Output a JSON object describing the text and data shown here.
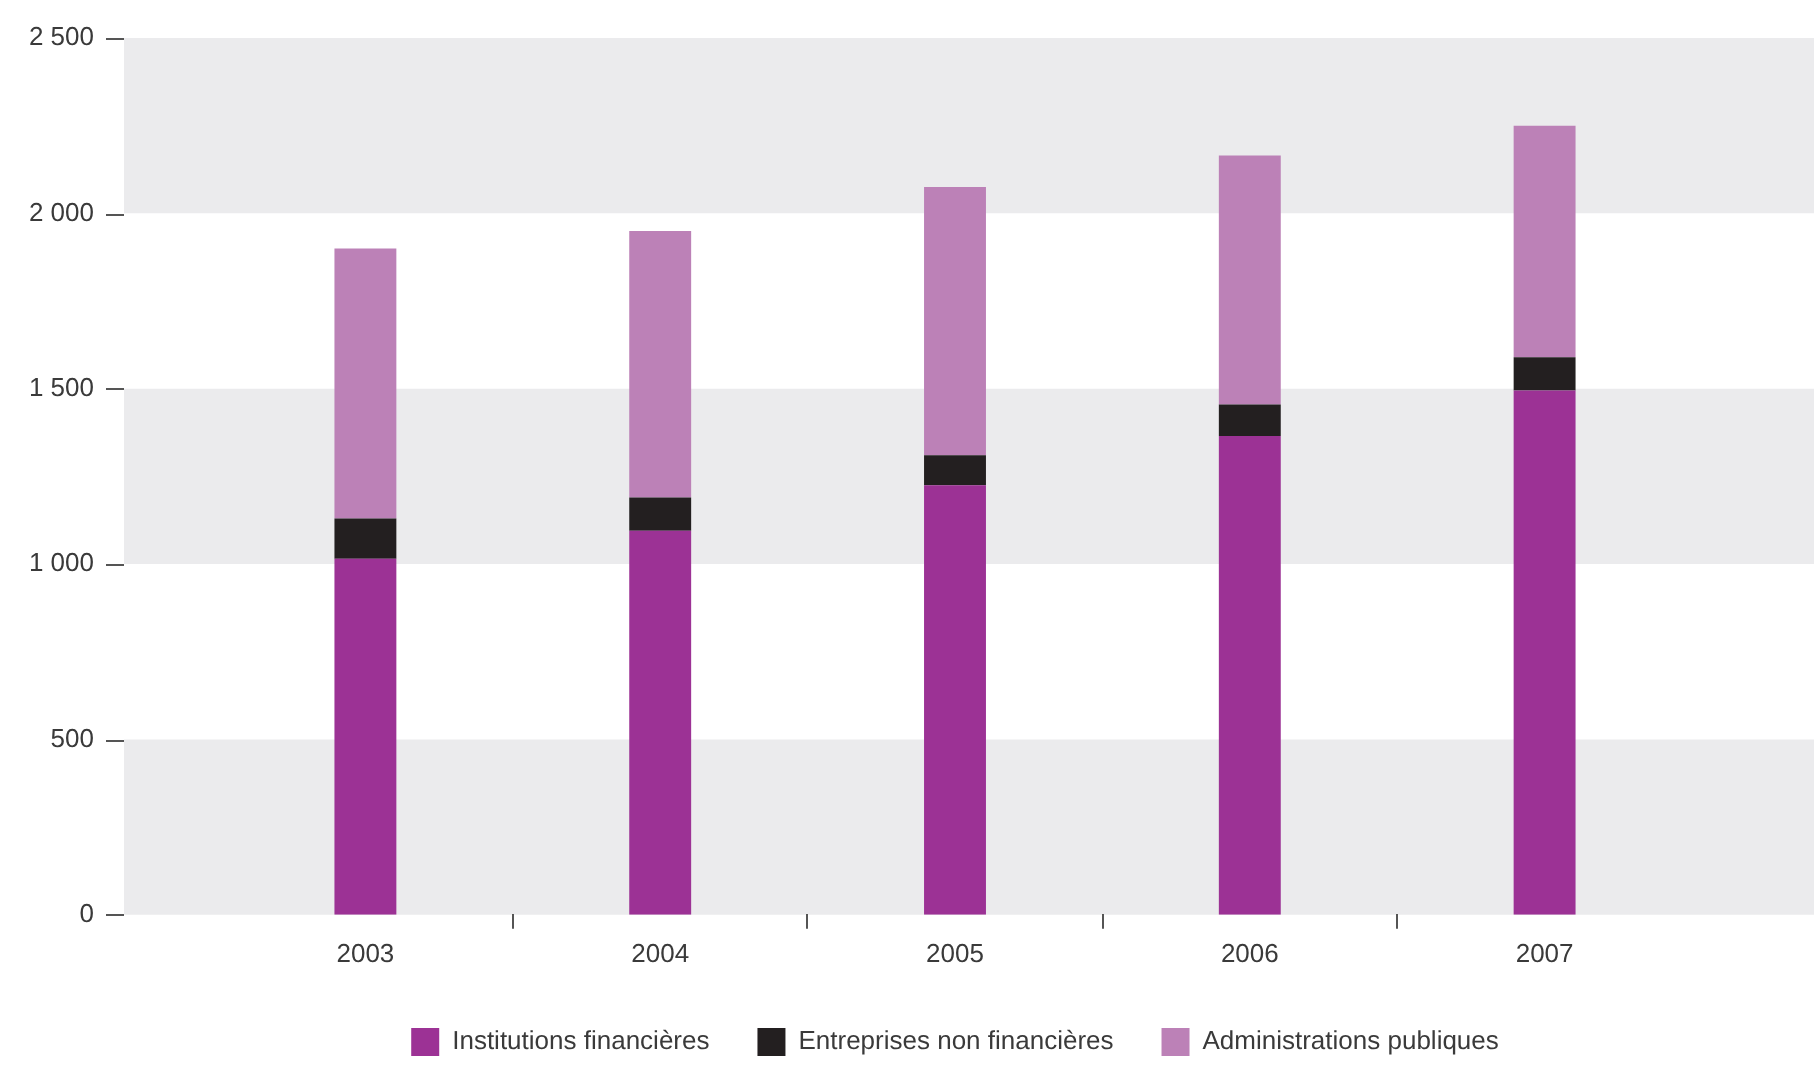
{
  "chart_data": {
    "type": "bar",
    "categories": [
      "2003",
      "2004",
      "2005",
      "2006",
      "2007"
    ],
    "stacked": true,
    "series": [
      {
        "name": "Institutions financières",
        "color": "#9c3295",
        "values": [
          1015,
          1095,
          1225,
          1365,
          1495
        ]
      },
      {
        "name": "Entreprises non financières",
        "color": "#231f20",
        "values": [
          115,
          95,
          85,
          90,
          95
        ]
      },
      {
        "name": "Administrations publiques",
        "color": "#bc81b7",
        "values": [
          770,
          760,
          765,
          710,
          660
        ]
      }
    ],
    "ylim": [
      0,
      2500
    ],
    "yticks": [
      0,
      500,
      {
        "value": 1000,
        "label": "1 000"
      },
      {
        "value": 1500,
        "label": "1 500"
      },
      {
        "value": 2000,
        "label": "2 000"
      },
      {
        "value": 2500,
        "label": "2 500"
      }
    ],
    "legend": "bottom"
  }
}
